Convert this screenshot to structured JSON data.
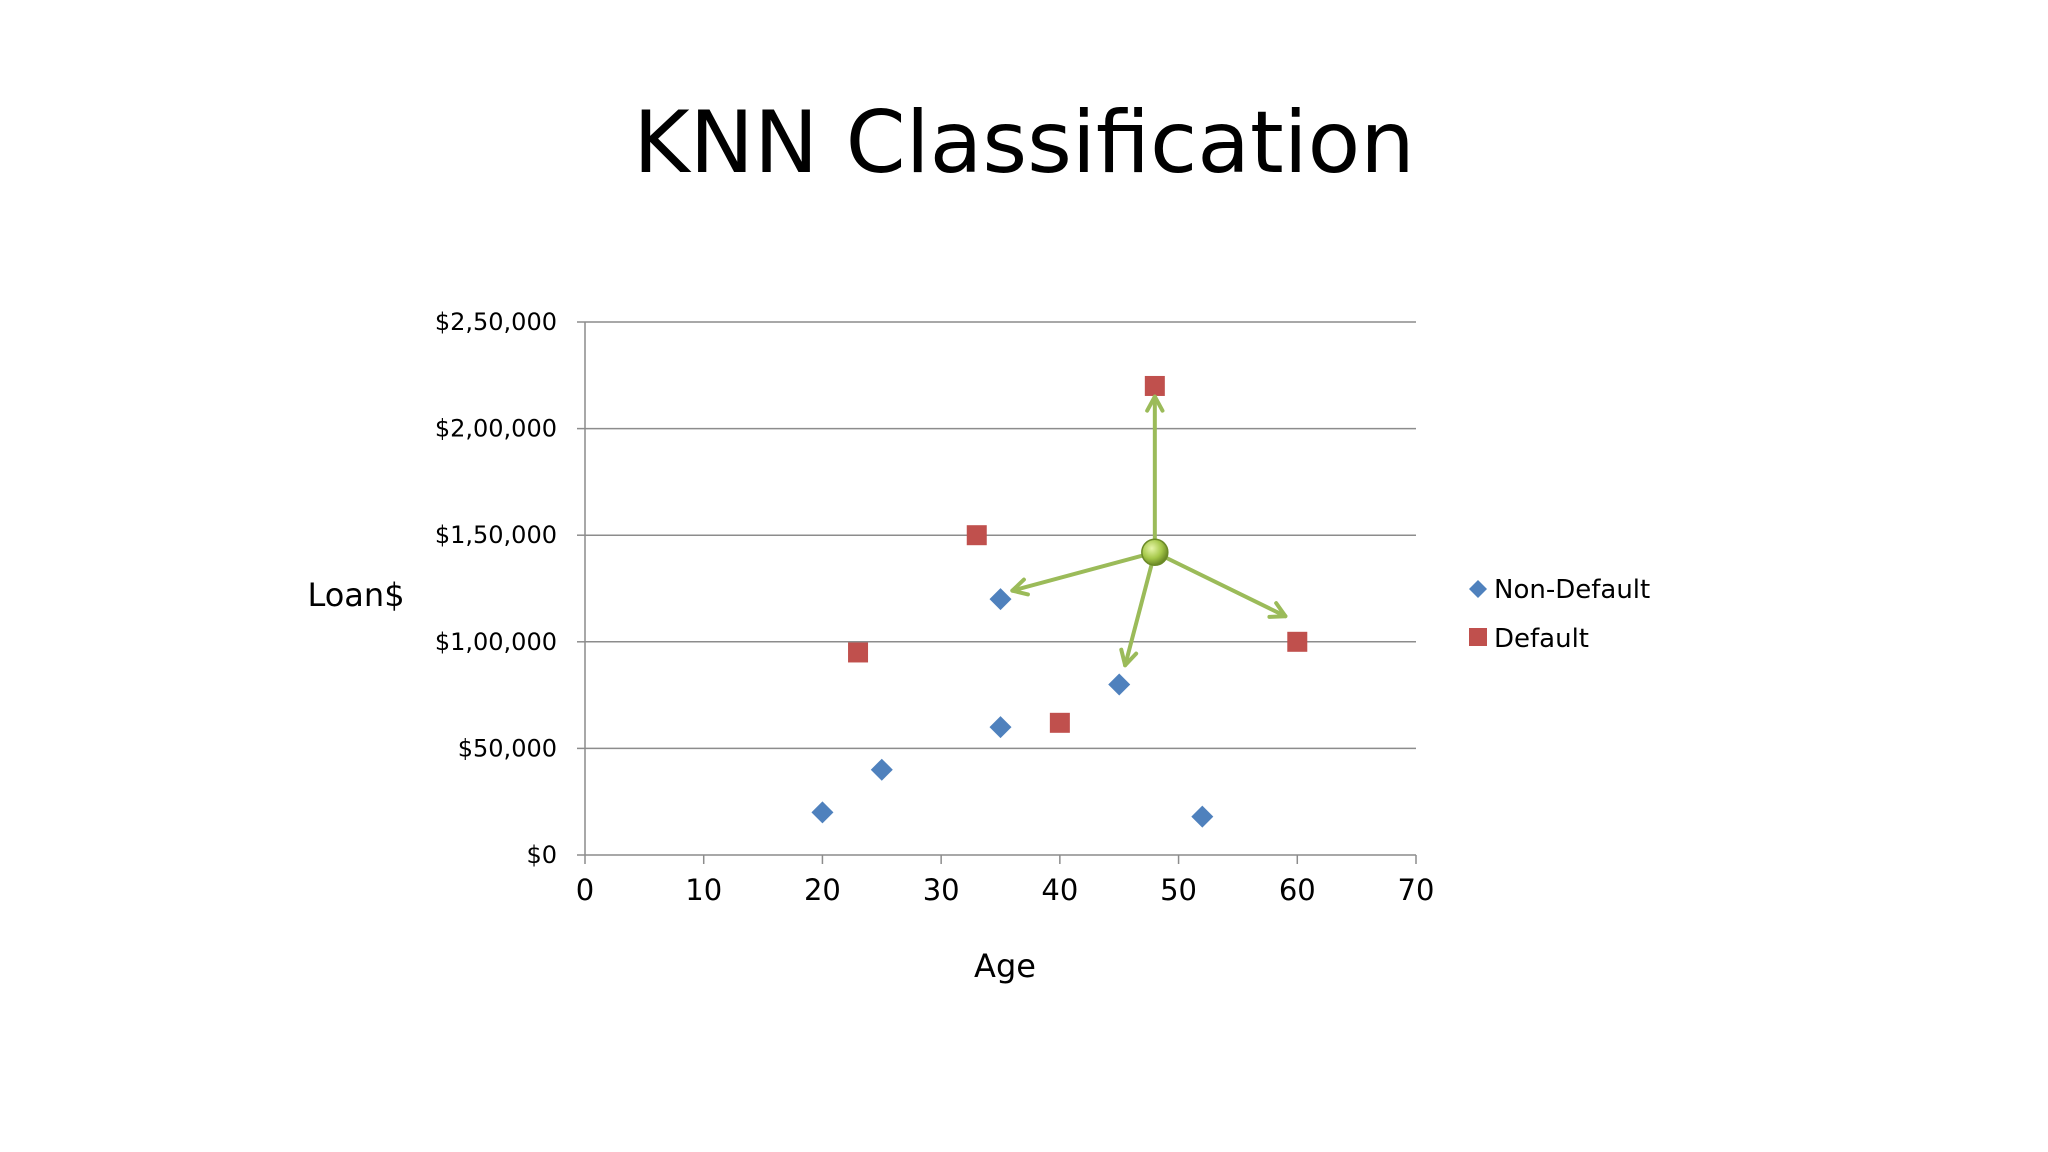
{
  "slide": {
    "title": "KNN Classification"
  },
  "chart_data": {
    "type": "scatter",
    "title": "KNN Classification",
    "xlabel": "Age",
    "ylabel": "Loan$",
    "xlim": [
      0,
      70
    ],
    "ylim": [
      0,
      250000
    ],
    "x_ticks": [
      0,
      10,
      20,
      30,
      40,
      50,
      60,
      70
    ],
    "x_tick_labels": [
      "0",
      "10",
      "20",
      "30",
      "40",
      "50",
      "60",
      "70"
    ],
    "y_ticks": [
      0,
      50000,
      100000,
      150000,
      200000,
      250000
    ],
    "y_tick_labels": [
      "$0",
      "$50,000",
      "$1,00,000",
      "$1,50,000",
      "$2,00,000",
      "$2,50,000"
    ],
    "grid": "horizontal",
    "legend_position": "right",
    "series": [
      {
        "name": "Non-Default",
        "marker": "diamond",
        "color": "#4f81bd",
        "points": [
          {
            "x": 20,
            "y": 20000
          },
          {
            "x": 25,
            "y": 40000
          },
          {
            "x": 35,
            "y": 60000
          },
          {
            "x": 35,
            "y": 120000
          },
          {
            "x": 45,
            "y": 80000
          },
          {
            "x": 52,
            "y": 18000
          }
        ]
      },
      {
        "name": "Default",
        "marker": "square",
        "color": "#c0504d",
        "points": [
          {
            "x": 23,
            "y": 95000
          },
          {
            "x": 33,
            "y": 150000
          },
          {
            "x": 40,
            "y": 62000
          },
          {
            "x": 48,
            "y": 220000
          },
          {
            "x": 60,
            "y": 100000
          }
        ]
      }
    ],
    "query_point": {
      "x": 48,
      "y": 142000,
      "color": "#9bbb59"
    },
    "neighbor_arrows": [
      {
        "to_x": 48,
        "to_y": 215000
      },
      {
        "to_x": 36,
        "to_y": 124000
      },
      {
        "to_x": 45.5,
        "to_y": 89000
      },
      {
        "to_x": 59,
        "to_y": 112000
      }
    ],
    "arrow_color": "#9bbb59"
  }
}
